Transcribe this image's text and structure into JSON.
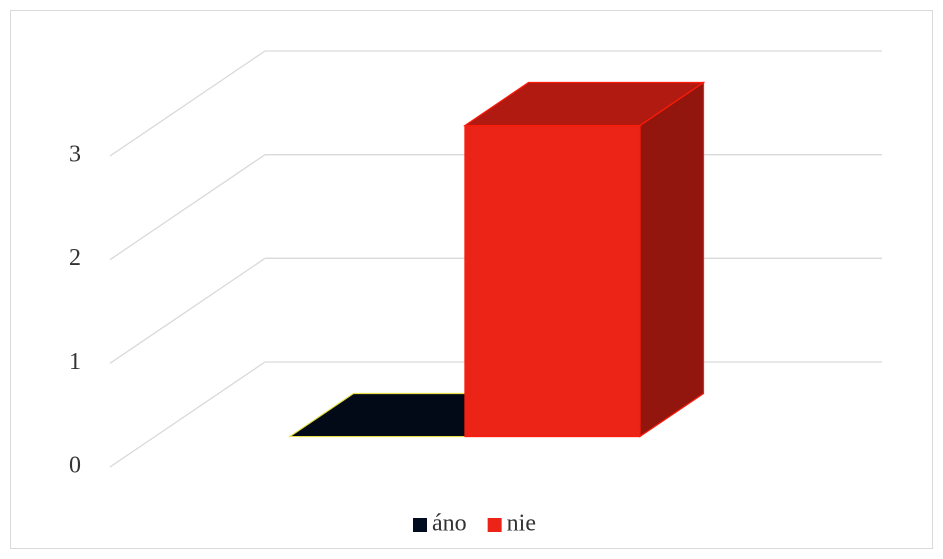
{
  "chart_data": {
    "type": "bar3d",
    "categories": [
      null
    ],
    "series": [
      {
        "name": "áno",
        "color": "#020c1f",
        "edgecolor": "#e6e04a",
        "values": [
          0
        ]
      },
      {
        "name": "nie",
        "color": "#ec2317",
        "edgecolor": "#ff1a0a",
        "values": [
          3
        ]
      }
    ],
    "ylim": [
      0,
      3
    ],
    "yticks": [
      0,
      1,
      2,
      3
    ],
    "grid": true,
    "legend": "bottom"
  }
}
